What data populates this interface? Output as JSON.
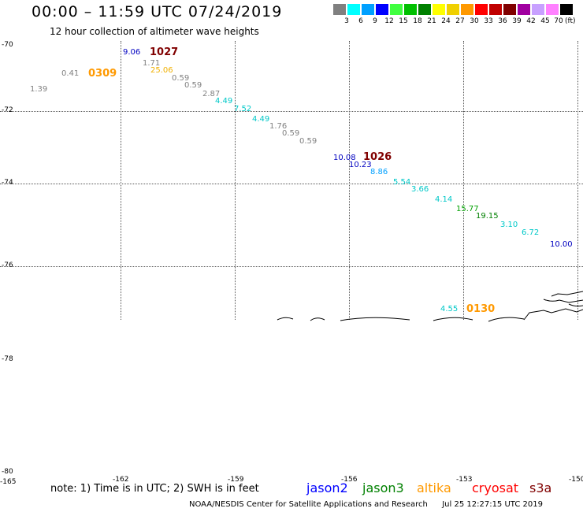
{
  "header": {
    "title": "00:00 – 11:59 UTC 07/24/2019",
    "subtitle": "12 hour collection of altimeter wave heights"
  },
  "legend": {
    "unit": "(ft)",
    "bins": [
      {
        "label": "3",
        "color": "#808080"
      },
      {
        "label": "6",
        "color": "#00ffff"
      },
      {
        "label": "9",
        "color": "#00a0ff"
      },
      {
        "label": "12",
        "color": "#0000ff"
      },
      {
        "label": "15",
        "color": "#40ff40"
      },
      {
        "label": "18",
        "color": "#00c000"
      },
      {
        "label": "21",
        "color": "#008000"
      },
      {
        "label": "24",
        "color": "#ffff00"
      },
      {
        "label": "27",
        "color": "#f0d000"
      },
      {
        "label": "30",
        "color": "#ff9900"
      },
      {
        "label": "33",
        "color": "#ff0000"
      },
      {
        "label": "36",
        "color": "#c00000"
      },
      {
        "label": "39",
        "color": "#800000"
      },
      {
        "label": "42",
        "color": "#a000a0"
      },
      {
        "label": "45",
        "color": "#c8a0ff"
      },
      {
        "label": "70",
        "color": "#ff80ff"
      },
      {
        "label": "",
        "color": "#000000"
      }
    ]
  },
  "axes": {
    "lat_labels": [
      "-70",
      "-72",
      "-74",
      "-76",
      "-78",
      "-80"
    ],
    "lon_labels": [
      "-165",
      "-162",
      "-159",
      "-156",
      "-153",
      "-150"
    ]
  },
  "times": [
    {
      "label": "1027",
      "color": "#800000"
    },
    {
      "label": "0309",
      "color": "#ff9900"
    },
    {
      "label": "1026",
      "color": "#800000"
    },
    {
      "label": "0130",
      "color": "#ff9900"
    }
  ],
  "swh_values": [
    {
      "v": "9.06",
      "color": "#0000c0"
    },
    {
      "v": "1.71",
      "color": "#808080"
    },
    {
      "v": "25.06",
      "color": "#f0b000"
    },
    {
      "v": "0.59",
      "color": "#808080"
    },
    {
      "v": "0.59",
      "color": "#808080"
    },
    {
      "v": "2.87",
      "color": "#808080"
    },
    {
      "v": "4.49",
      "color": "#00c8c8"
    },
    {
      "v": "7.52",
      "color": "#00c8c8"
    },
    {
      "v": "4.49",
      "color": "#00c8c8"
    },
    {
      "v": "1.76",
      "color": "#808080"
    },
    {
      "v": "0.59",
      "color": "#808080"
    },
    {
      "v": "0.59",
      "color": "#808080"
    },
    {
      "v": "0.41",
      "color": "#808080"
    },
    {
      "v": "1.39",
      "color": "#808080"
    },
    {
      "v": "10.08",
      "color": "#0000c0"
    },
    {
      "v": "10.23",
      "color": "#0000c0"
    },
    {
      "v": "8.86",
      "color": "#00a0ff"
    },
    {
      "v": "5.54",
      "color": "#00c8c8"
    },
    {
      "v": "3.66",
      "color": "#00c8c8"
    },
    {
      "v": "4.14",
      "color": "#00c8c8"
    },
    {
      "v": "15.77",
      "color": "#00a000"
    },
    {
      "v": "19.15",
      "color": "#008000"
    },
    {
      "v": "3.10",
      "color": "#00c8c8"
    },
    {
      "v": "6.72",
      "color": "#00c8c8"
    },
    {
      "v": "10.00",
      "color": "#0000c0"
    },
    {
      "v": "4.55",
      "color": "#00c8c8"
    }
  ],
  "footer": {
    "note": "note: 1) Time is in UTC; 2) SWH is in feet",
    "satellites": [
      {
        "name": "jason2",
        "color": "#0000ff"
      },
      {
        "name": "jason3",
        "color": "#008000"
      },
      {
        "name": "altika",
        "color": "#ff9900"
      },
      {
        "name": "cryosat",
        "color": "#ff0000"
      },
      {
        "name": "s3a",
        "color": "#800000"
      }
    ],
    "credit": "NOAA/NESDIS Center for Satellite Applications and Research",
    "timestamp": "Jul 25 12:27:15 UTC 2019"
  }
}
